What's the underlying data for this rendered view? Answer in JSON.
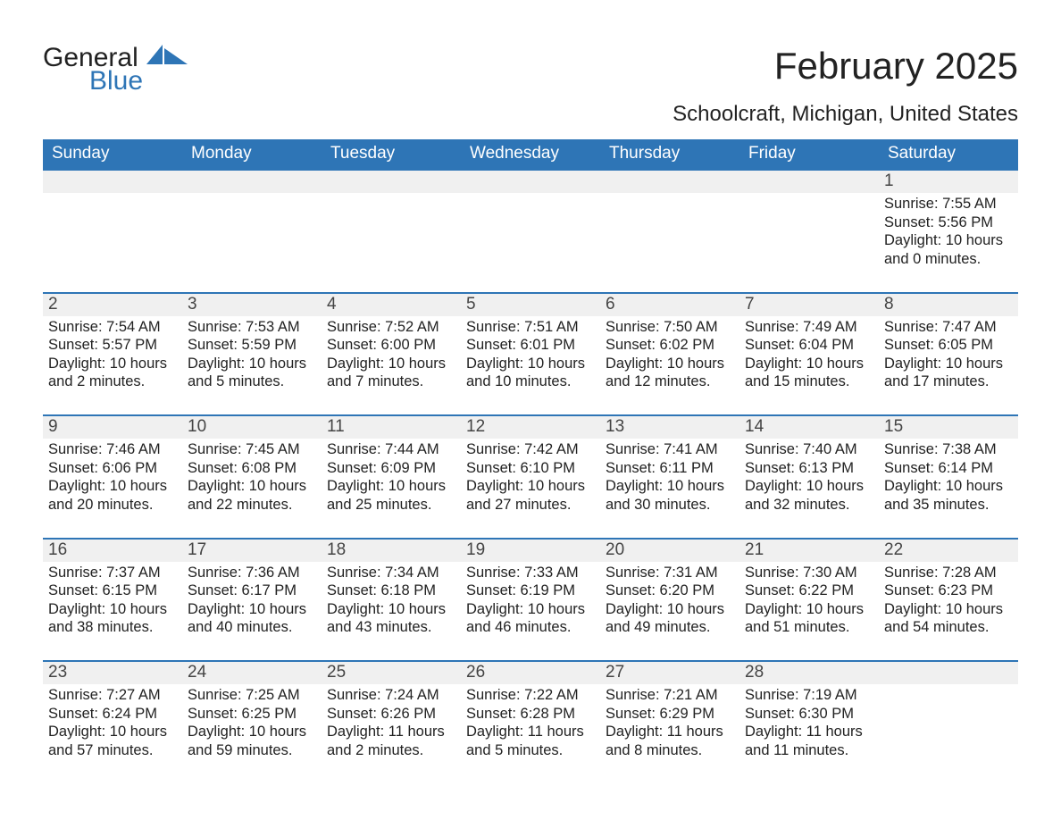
{
  "brand": {
    "word1": "General",
    "word2": "Blue",
    "word1_color": "#222222",
    "word2_color": "#2e75b6",
    "mark_color": "#2e75b6"
  },
  "header": {
    "title": "February 2025",
    "location": "Schoolcraft, Michigan, United States"
  },
  "calendar": {
    "type": "table",
    "accent_color": "#2e75b6",
    "header_bg": "#2e75b6",
    "header_text_color": "#ffffff",
    "row_border_color": "#2e75b6",
    "daynum_bg": "#f0f0f0",
    "body_text_color": "#222222",
    "background_color": "#ffffff",
    "title_fontsize": 42,
    "subtitle_fontsize": 24,
    "header_fontsize": 19,
    "body_fontsize": 16.5,
    "columns": [
      "Sunday",
      "Monday",
      "Tuesday",
      "Wednesday",
      "Thursday",
      "Friday",
      "Saturday"
    ],
    "weeks": [
      [
        null,
        null,
        null,
        null,
        null,
        null,
        {
          "n": "1",
          "sunrise": "Sunrise: 7:55 AM",
          "sunset": "Sunset: 5:56 PM",
          "daylight": "Daylight: 10 hours and 0 minutes."
        }
      ],
      [
        {
          "n": "2",
          "sunrise": "Sunrise: 7:54 AM",
          "sunset": "Sunset: 5:57 PM",
          "daylight": "Daylight: 10 hours and 2 minutes."
        },
        {
          "n": "3",
          "sunrise": "Sunrise: 7:53 AM",
          "sunset": "Sunset: 5:59 PM",
          "daylight": "Daylight: 10 hours and 5 minutes."
        },
        {
          "n": "4",
          "sunrise": "Sunrise: 7:52 AM",
          "sunset": "Sunset: 6:00 PM",
          "daylight": "Daylight: 10 hours and 7 minutes."
        },
        {
          "n": "5",
          "sunrise": "Sunrise: 7:51 AM",
          "sunset": "Sunset: 6:01 PM",
          "daylight": "Daylight: 10 hours and 10 minutes."
        },
        {
          "n": "6",
          "sunrise": "Sunrise: 7:50 AM",
          "sunset": "Sunset: 6:02 PM",
          "daylight": "Daylight: 10 hours and 12 minutes."
        },
        {
          "n": "7",
          "sunrise": "Sunrise: 7:49 AM",
          "sunset": "Sunset: 6:04 PM",
          "daylight": "Daylight: 10 hours and 15 minutes."
        },
        {
          "n": "8",
          "sunrise": "Sunrise: 7:47 AM",
          "sunset": "Sunset: 6:05 PM",
          "daylight": "Daylight: 10 hours and 17 minutes."
        }
      ],
      [
        {
          "n": "9",
          "sunrise": "Sunrise: 7:46 AM",
          "sunset": "Sunset: 6:06 PM",
          "daylight": "Daylight: 10 hours and 20 minutes."
        },
        {
          "n": "10",
          "sunrise": "Sunrise: 7:45 AM",
          "sunset": "Sunset: 6:08 PM",
          "daylight": "Daylight: 10 hours and 22 minutes."
        },
        {
          "n": "11",
          "sunrise": "Sunrise: 7:44 AM",
          "sunset": "Sunset: 6:09 PM",
          "daylight": "Daylight: 10 hours and 25 minutes."
        },
        {
          "n": "12",
          "sunrise": "Sunrise: 7:42 AM",
          "sunset": "Sunset: 6:10 PM",
          "daylight": "Daylight: 10 hours and 27 minutes."
        },
        {
          "n": "13",
          "sunrise": "Sunrise: 7:41 AM",
          "sunset": "Sunset: 6:11 PM",
          "daylight": "Daylight: 10 hours and 30 minutes."
        },
        {
          "n": "14",
          "sunrise": "Sunrise: 7:40 AM",
          "sunset": "Sunset: 6:13 PM",
          "daylight": "Daylight: 10 hours and 32 minutes."
        },
        {
          "n": "15",
          "sunrise": "Sunrise: 7:38 AM",
          "sunset": "Sunset: 6:14 PM",
          "daylight": "Daylight: 10 hours and 35 minutes."
        }
      ],
      [
        {
          "n": "16",
          "sunrise": "Sunrise: 7:37 AM",
          "sunset": "Sunset: 6:15 PM",
          "daylight": "Daylight: 10 hours and 38 minutes."
        },
        {
          "n": "17",
          "sunrise": "Sunrise: 7:36 AM",
          "sunset": "Sunset: 6:17 PM",
          "daylight": "Daylight: 10 hours and 40 minutes."
        },
        {
          "n": "18",
          "sunrise": "Sunrise: 7:34 AM",
          "sunset": "Sunset: 6:18 PM",
          "daylight": "Daylight: 10 hours and 43 minutes."
        },
        {
          "n": "19",
          "sunrise": "Sunrise: 7:33 AM",
          "sunset": "Sunset: 6:19 PM",
          "daylight": "Daylight: 10 hours and 46 minutes."
        },
        {
          "n": "20",
          "sunrise": "Sunrise: 7:31 AM",
          "sunset": "Sunset: 6:20 PM",
          "daylight": "Daylight: 10 hours and 49 minutes."
        },
        {
          "n": "21",
          "sunrise": "Sunrise: 7:30 AM",
          "sunset": "Sunset: 6:22 PM",
          "daylight": "Daylight: 10 hours and 51 minutes."
        },
        {
          "n": "22",
          "sunrise": "Sunrise: 7:28 AM",
          "sunset": "Sunset: 6:23 PM",
          "daylight": "Daylight: 10 hours and 54 minutes."
        }
      ],
      [
        {
          "n": "23",
          "sunrise": "Sunrise: 7:27 AM",
          "sunset": "Sunset: 6:24 PM",
          "daylight": "Daylight: 10 hours and 57 minutes."
        },
        {
          "n": "24",
          "sunrise": "Sunrise: 7:25 AM",
          "sunset": "Sunset: 6:25 PM",
          "daylight": "Daylight: 10 hours and 59 minutes."
        },
        {
          "n": "25",
          "sunrise": "Sunrise: 7:24 AM",
          "sunset": "Sunset: 6:26 PM",
          "daylight": "Daylight: 11 hours and 2 minutes."
        },
        {
          "n": "26",
          "sunrise": "Sunrise: 7:22 AM",
          "sunset": "Sunset: 6:28 PM",
          "daylight": "Daylight: 11 hours and 5 minutes."
        },
        {
          "n": "27",
          "sunrise": "Sunrise: 7:21 AM",
          "sunset": "Sunset: 6:29 PM",
          "daylight": "Daylight: 11 hours and 8 minutes."
        },
        {
          "n": "28",
          "sunrise": "Sunrise: 7:19 AM",
          "sunset": "Sunset: 6:30 PM",
          "daylight": "Daylight: 11 hours and 11 minutes."
        },
        null
      ]
    ]
  }
}
